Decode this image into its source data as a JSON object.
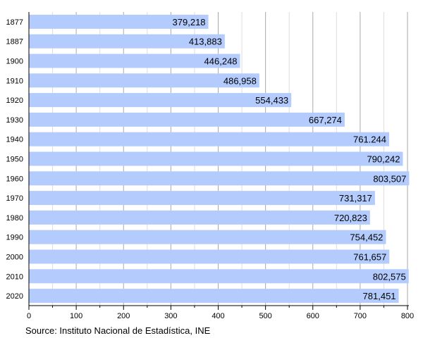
{
  "chart_data": {
    "type": "bar",
    "orientation": "horizontal",
    "categories": [
      "1877",
      "1887",
      "1900",
      "1910",
      "1920",
      "1930",
      "1940",
      "1950",
      "1960",
      "1970",
      "1980",
      "1990",
      "2000",
      "2010",
      "2020"
    ],
    "values": [
      379.218,
      413.883,
      446.248,
      486.958,
      554.433,
      667.274,
      761.244,
      790.242,
      803.507,
      731.317,
      720.823,
      754.452,
      761.657,
      802.575,
      781.451
    ],
    "data_labels": [
      "379,218",
      "413,883",
      "446,248",
      "486,958",
      "554,433",
      "667,274",
      "761.244",
      "790,242",
      "803,507",
      "731,317",
      "720,823",
      "754,452",
      "761,657",
      "802,575",
      "781,451"
    ],
    "xlim": [
      0,
      800
    ],
    "xticks": [
      "0",
      "100",
      "200",
      "300",
      "400",
      "500",
      "600",
      "700",
      "800"
    ],
    "grid": true,
    "bar_color": "#b3ccfd",
    "source": "Source: Instituto Nacional de Estadística, INE"
  }
}
